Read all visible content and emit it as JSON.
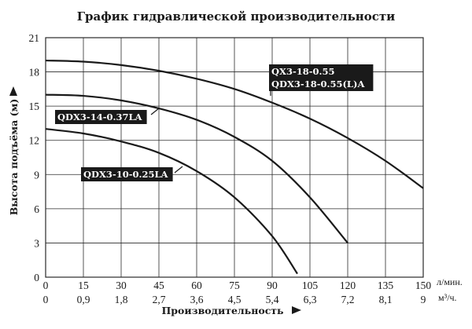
{
  "chart_data": {
    "type": "line",
    "title": "График гидравлической производительности",
    "xlabel": "Производительность",
    "ylabel": "Высота подъёма (м)",
    "x_unit_top": "л/мин.",
    "x_unit_bottom": "м³/ч.",
    "xlim": [
      0,
      150
    ],
    "ylim": [
      0,
      21
    ],
    "x_ticks": [
      "0",
      "15",
      "30",
      "45",
      "60",
      "75",
      "90",
      "105",
      "120",
      "135",
      "150"
    ],
    "x_ticks_secondary": [
      "0",
      "0,9",
      "1,8",
      "2,7",
      "3,6",
      "4,5",
      "5,4",
      "6,3",
      "7,2",
      "8,1",
      "9"
    ],
    "y_ticks": [
      "0",
      "3",
      "6",
      "9",
      "12",
      "15",
      "18",
      "21"
    ],
    "grid": true,
    "series": [
      {
        "name": "QX3-18-0.55",
        "name_line2": "QDX3-18-0.55(L)A",
        "x": [
          0,
          15,
          30,
          45,
          60,
          75,
          90,
          105,
          120,
          135,
          150
        ],
        "y": [
          19.0,
          18.9,
          18.6,
          18.1,
          17.4,
          16.5,
          15.3,
          13.9,
          12.2,
          10.2,
          7.8
        ]
      },
      {
        "name": "QDX3-14-0.37LA",
        "x": [
          0,
          15,
          30,
          45,
          60,
          75,
          90,
          105,
          120
        ],
        "y": [
          16.0,
          15.9,
          15.5,
          14.8,
          13.8,
          12.3,
          10.2,
          7.0,
          3.0
        ]
      },
      {
        "name": "QDX3-10-0.25LA",
        "x": [
          0,
          15,
          30,
          45,
          60,
          75,
          90,
          100
        ],
        "y": [
          13.0,
          12.6,
          11.9,
          10.9,
          9.3,
          7.0,
          3.6,
          0.3
        ]
      }
    ]
  },
  "colors": {
    "curve": "#1a1a1a",
    "grid": "#2a2a2a",
    "label_bg": "#1a1a1a",
    "label_text": "#ffffff"
  }
}
